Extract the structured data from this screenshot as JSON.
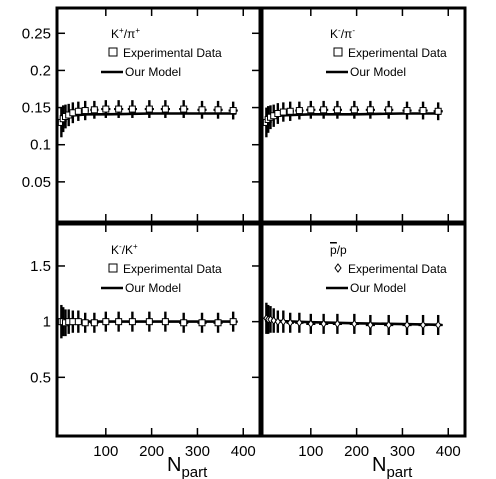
{
  "chart_data": [
    {
      "type": "scatter",
      "panel": "top-left",
      "ratio_label": {
        "base": "K",
        "sup1": "+",
        "mid": "/π",
        "sup2": "+"
      },
      "legend": {
        "data_marker": "square",
        "data_label": "Experimental Data",
        "model_label": "Our Model"
      },
      "ylim": [
        0,
        0.28
      ],
      "xlim": [
        0,
        430
      ],
      "yticks": [
        "0.05",
        "0.1",
        "0.15",
        "0.2",
        "0.25"
      ],
      "ytick_values": [
        0.05,
        0.1,
        0.15,
        0.2,
        0.25
      ],
      "x": [
        3,
        7,
        12,
        19,
        28,
        40,
        55,
        75,
        100,
        128,
        158,
        195,
        230,
        270,
        310,
        345,
        378
      ],
      "y": [
        0.13,
        0.135,
        0.138,
        0.14,
        0.143,
        0.145,
        0.146,
        0.147,
        0.148,
        0.148,
        0.148,
        0.148,
        0.148,
        0.148,
        0.147,
        0.147,
        0.146
      ],
      "yerr": [
        0.02,
        0.018,
        0.016,
        0.015,
        0.014,
        0.013,
        0.013,
        0.012,
        0.012,
        0.012,
        0.012,
        0.012,
        0.012,
        0.012,
        0.012,
        0.012,
        0.012
      ],
      "xerr": [
        2,
        3,
        4,
        5,
        6,
        7,
        8,
        9,
        10,
        10,
        10,
        10,
        10,
        10,
        10,
        10,
        10
      ],
      "model": {
        "x": [
          0,
          20,
          60,
          100,
          200,
          300,
          385
        ],
        "y": [
          0.135,
          0.139,
          0.141,
          0.141,
          0.142,
          0.142,
          0.142
        ]
      }
    },
    {
      "type": "scatter",
      "panel": "top-right",
      "ratio_label": {
        "base": "K",
        "sup1": "-",
        "mid": "/π",
        "sup2": "-"
      },
      "legend": {
        "data_marker": "square",
        "data_label": "Experimental Data",
        "model_label": "Our Model"
      },
      "ylim": [
        0,
        0.28
      ],
      "xlim": [
        0,
        430
      ],
      "x": [
        3,
        7,
        12,
        19,
        28,
        40,
        55,
        75,
        100,
        128,
        158,
        195,
        230,
        270,
        310,
        345,
        378
      ],
      "y": [
        0.13,
        0.134,
        0.137,
        0.139,
        0.142,
        0.144,
        0.145,
        0.146,
        0.147,
        0.147,
        0.147,
        0.147,
        0.147,
        0.147,
        0.146,
        0.146,
        0.145
      ],
      "yerr": [
        0.02,
        0.018,
        0.016,
        0.015,
        0.014,
        0.013,
        0.013,
        0.012,
        0.012,
        0.012,
        0.012,
        0.012,
        0.012,
        0.012,
        0.012,
        0.012,
        0.012
      ],
      "xerr": [
        2,
        3,
        4,
        5,
        6,
        7,
        8,
        9,
        10,
        10,
        10,
        10,
        10,
        10,
        10,
        10,
        10
      ],
      "model": {
        "x": [
          0,
          20,
          60,
          100,
          200,
          300,
          385
        ],
        "y": [
          0.135,
          0.139,
          0.14,
          0.141,
          0.141,
          0.142,
          0.142
        ]
      }
    },
    {
      "type": "scatter",
      "panel": "bottom-left",
      "ratio_label": {
        "base": "K",
        "sup1": "-",
        "mid": "/K",
        "sup2": "+"
      },
      "legend": {
        "data_marker": "square",
        "data_label": "Experimental Data",
        "model_label": "Our Model"
      },
      "ylim": [
        0,
        1.85
      ],
      "xlim": [
        0,
        430
      ],
      "yticks": [
        "0.5",
        "1",
        "1.5"
      ],
      "ytick_values": [
        0.5,
        1,
        1.5
      ],
      "xticks": [
        "100",
        "200",
        "300",
        "400"
      ],
      "xtick_values": [
        100,
        200,
        300,
        400
      ],
      "xlabel": {
        "main": "N",
        "sub": "part"
      },
      "x": [
        3,
        7,
        12,
        19,
        28,
        40,
        55,
        75,
        100,
        128,
        158,
        195,
        230,
        270,
        310,
        345,
        378
      ],
      "y": [
        1.0,
        1.0,
        0.99,
        1.0,
        1.0,
        1.0,
        0.99,
        0.99,
        1.0,
        1.0,
        1.0,
        1.0,
        1.0,
        0.99,
        0.99,
        0.99,
        1.0
      ],
      "yerr": [
        0.15,
        0.13,
        0.12,
        0.11,
        0.1,
        0.1,
        0.09,
        0.09,
        0.09,
        0.09,
        0.09,
        0.09,
        0.09,
        0.09,
        0.09,
        0.09,
        0.09
      ],
      "xerr": [
        2,
        3,
        4,
        5,
        6,
        7,
        8,
        9,
        10,
        10,
        10,
        10,
        10,
        10,
        10,
        10,
        10
      ],
      "model": {
        "x": [
          0,
          100,
          200,
          300,
          385
        ],
        "y": [
          1.0,
          1.0,
          1.0,
          1.0,
          1.0
        ]
      }
    },
    {
      "type": "scatter",
      "panel": "bottom-right",
      "ratio_label": {
        "base": "p",
        "overline": true,
        "mid": "/p"
      },
      "legend": {
        "data_marker": "diamond",
        "data_label": "Experimental Data",
        "model_label": "Our Model"
      },
      "ylim": [
        0,
        1.85
      ],
      "xlim": [
        0,
        430
      ],
      "xticks": [
        "100",
        "200",
        "300",
        "400"
      ],
      "xtick_values": [
        100,
        200,
        300,
        400
      ],
      "xlabel": {
        "main": "N",
        "sub": "part"
      },
      "x": [
        3,
        7,
        12,
        19,
        28,
        40,
        55,
        75,
        100,
        128,
        158,
        195,
        230,
        270,
        310,
        345,
        378
      ],
      "y": [
        1.03,
        1.02,
        1.02,
        1.01,
        1.0,
        1.0,
        0.99,
        0.99,
        0.98,
        0.98,
        0.98,
        0.98,
        0.97,
        0.97,
        0.97,
        0.97,
        0.97
      ],
      "yerr": [
        0.14,
        0.13,
        0.12,
        0.11,
        0.1,
        0.1,
        0.09,
        0.09,
        0.09,
        0.09,
        0.09,
        0.09,
        0.09,
        0.09,
        0.09,
        0.09,
        0.09
      ],
      "xerr": [
        2,
        3,
        4,
        5,
        6,
        7,
        8,
        9,
        10,
        10,
        10,
        10,
        10,
        10,
        10,
        10,
        10
      ],
      "model": {
        "x": [
          0,
          100,
          200,
          300,
          385
        ],
        "y": [
          1.01,
          0.995,
          0.985,
          0.978,
          0.972
        ]
      }
    }
  ]
}
